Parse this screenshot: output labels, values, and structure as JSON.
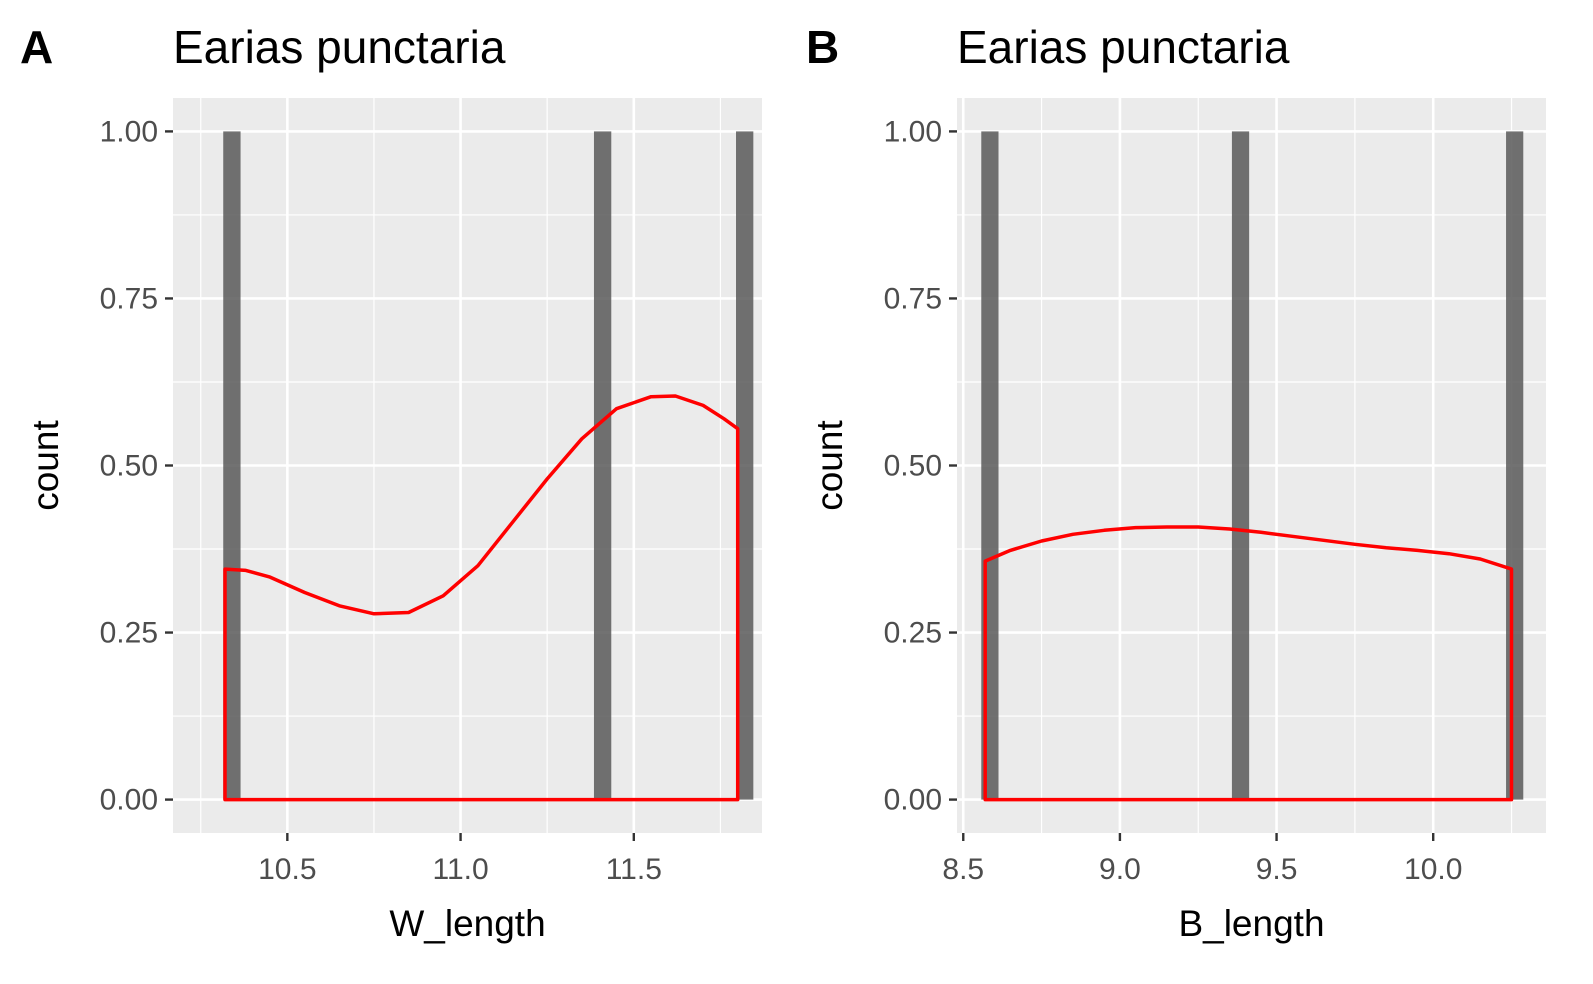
{
  "colors": {
    "panel_background": "#EBEBEB",
    "grid": "#FFFFFF",
    "bar_fill": "#595959",
    "density_line": "#FF0000",
    "tick_text": "#4D4D4D",
    "text": "#000000"
  },
  "chart_data": [
    {
      "tag": "A",
      "type": "bar",
      "title": "Earias punctaria",
      "xlabel": "W_length",
      "ylabel": "count",
      "xlim": [
        10.17,
        11.87
      ],
      "ylim": [
        -0.05,
        1.05
      ],
      "x_ticks": [
        "10.5",
        "11.0",
        "11.5"
      ],
      "x_tick_values": [
        10.5,
        11.0,
        11.5
      ],
      "y_ticks": [
        "0.00",
        "0.25",
        "0.50",
        "0.75",
        "1.00"
      ],
      "y_tick_values": [
        0,
        0.25,
        0.5,
        0.75,
        1.0
      ],
      "grid": true,
      "bar_width": 0.05,
      "bars": [
        {
          "x": 10.34,
          "count": 1
        },
        {
          "x": 11.41,
          "count": 1
        },
        {
          "x": 11.82,
          "count": 1
        }
      ],
      "density_overlay": {
        "x": [
          10.32,
          10.38,
          10.45,
          10.55,
          10.65,
          10.75,
          10.85,
          10.95,
          11.05,
          11.15,
          11.25,
          11.35,
          11.45,
          11.55,
          11.62,
          11.7,
          11.76,
          11.8
        ],
        "y": [
          0.345,
          0.343,
          0.333,
          0.31,
          0.29,
          0.278,
          0.28,
          0.305,
          0.35,
          0.415,
          0.48,
          0.54,
          0.585,
          0.603,
          0.604,
          0.59,
          0.57,
          0.555
        ]
      }
    },
    {
      "tag": "B",
      "type": "bar",
      "title": "Earias punctaria",
      "xlabel": "B_length",
      "ylabel": "count",
      "xlim": [
        8.48,
        10.36
      ],
      "ylim": [
        -0.05,
        1.05
      ],
      "x_ticks": [
        "8.5",
        "9.0",
        "9.5",
        "10.0"
      ],
      "x_tick_values": [
        8.5,
        9.0,
        9.5,
        10.0
      ],
      "y_ticks": [
        "0.00",
        "0.25",
        "0.50",
        "0.75",
        "1.00"
      ],
      "y_tick_values": [
        0,
        0.25,
        0.5,
        0.75,
        1.0
      ],
      "grid": true,
      "bar_width": 0.055,
      "bars": [
        {
          "x": 8.585,
          "count": 1
        },
        {
          "x": 9.385,
          "count": 1
        },
        {
          "x": 10.26,
          "count": 1
        }
      ],
      "density_overlay": {
        "x": [
          8.57,
          8.65,
          8.75,
          8.85,
          8.95,
          9.05,
          9.15,
          9.25,
          9.35,
          9.45,
          9.55,
          9.65,
          9.75,
          9.85,
          9.95,
          10.05,
          10.15,
          10.25
        ],
        "y": [
          0.357,
          0.373,
          0.387,
          0.397,
          0.403,
          0.407,
          0.408,
          0.408,
          0.405,
          0.4,
          0.394,
          0.388,
          0.382,
          0.377,
          0.373,
          0.368,
          0.36,
          0.345
        ]
      }
    }
  ]
}
